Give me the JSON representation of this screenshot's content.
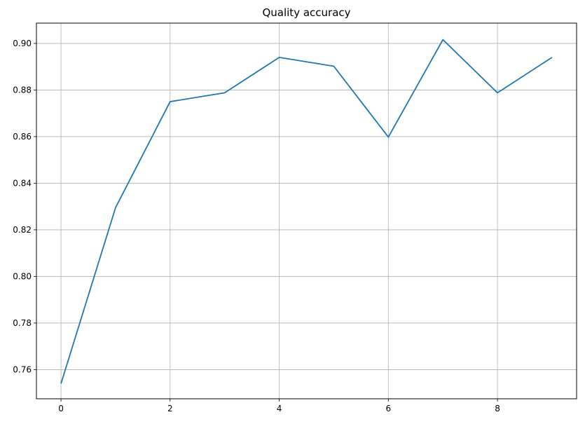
{
  "chart_data": {
    "type": "line",
    "title": "Quality accuracy",
    "xlabel": "",
    "ylabel": "",
    "xlim": [
      -0.45,
      9.45
    ],
    "ylim": [
      0.7475,
      0.9087
    ],
    "xticks": [
      0,
      2,
      4,
      6,
      8
    ],
    "yticks": [
      0.76,
      0.78,
      0.8,
      0.82,
      0.84,
      0.86,
      0.88,
      0.9
    ],
    "xtick_labels": [
      "0",
      "2",
      "4",
      "6",
      "8"
    ],
    "ytick_labels": [
      "0.76",
      "0.78",
      "0.80",
      "0.82",
      "0.84",
      "0.86",
      "0.88",
      "0.90"
    ],
    "grid": true,
    "series": [
      {
        "color": "#1f77b4",
        "x": [
          0,
          1,
          2,
          3,
          4,
          5,
          6,
          7,
          8,
          9
        ],
        "y": [
          0.754,
          0.8295,
          0.875,
          0.8788,
          0.894,
          0.8902,
          0.8598,
          0.9016,
          0.8788,
          0.894
        ]
      }
    ]
  }
}
